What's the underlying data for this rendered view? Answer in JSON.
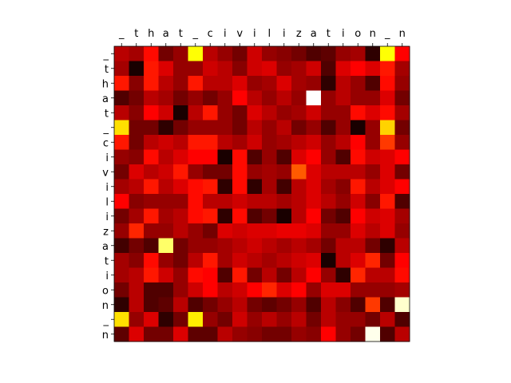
{
  "chart_data": {
    "type": "heatmap",
    "title": "",
    "xlabel": "",
    "ylabel": "",
    "colormap": "hot",
    "x_ticks_position": "top",
    "grid": false,
    "legend": "none",
    "x_tick_labels": [
      "_",
      "t",
      "h",
      "a",
      "t",
      "_",
      "c",
      "i",
      "v",
      "i",
      "l",
      "i",
      "z",
      "a",
      "t",
      "i",
      "o",
      "n",
      "_",
      "n"
    ],
    "y_tick_labels": [
      "_",
      "t",
      "h",
      "a",
      "t",
      "_",
      "c",
      "i",
      "v",
      "i",
      "l",
      "i",
      "z",
      "a",
      "t",
      "i",
      "o",
      "n",
      "_",
      "n"
    ],
    "value_range": [
      0,
      1
    ],
    "values": [
      [
        0.25,
        0.22,
        0.38,
        0.15,
        0.2,
        0.75,
        0.25,
        0.2,
        0.15,
        0.28,
        0.2,
        0.18,
        0.15,
        0.1,
        0.12,
        0.2,
        0.22,
        0.05,
        0.75,
        0.35
      ],
      [
        0.22,
        0.02,
        0.4,
        0.3,
        0.2,
        0.2,
        0.28,
        0.25,
        0.18,
        0.28,
        0.3,
        0.2,
        0.22,
        0.28,
        0.1,
        0.3,
        0.35,
        0.3,
        0.4,
        0.22
      ],
      [
        0.4,
        0.18,
        0.4,
        0.25,
        0.2,
        0.4,
        0.25,
        0.25,
        0.3,
        0.2,
        0.22,
        0.3,
        0.22,
        0.2,
        0.05,
        0.25,
        0.2,
        0.1,
        0.38,
        0.2
      ],
      [
        0.1,
        0.15,
        0.25,
        0.22,
        0.15,
        0.2,
        0.15,
        0.2,
        0.35,
        0.25,
        0.2,
        0.25,
        0.2,
        1.0,
        0.2,
        0.25,
        0.2,
        0.2,
        0.3,
        0.15
      ],
      [
        0.25,
        0.18,
        0.35,
        0.28,
        0.02,
        0.25,
        0.4,
        0.2,
        0.15,
        0.3,
        0.25,
        0.2,
        0.22,
        0.28,
        0.2,
        0.2,
        0.38,
        0.3,
        0.38,
        0.22
      ],
      [
        0.7,
        0.15,
        0.15,
        0.05,
        0.15,
        0.2,
        0.2,
        0.2,
        0.15,
        0.25,
        0.2,
        0.25,
        0.15,
        0.2,
        0.1,
        0.2,
        0.02,
        0.2,
        0.68,
        0.15
      ],
      [
        0.4,
        0.15,
        0.25,
        0.28,
        0.25,
        0.4,
        0.4,
        0.25,
        0.22,
        0.28,
        0.2,
        0.22,
        0.25,
        0.28,
        0.2,
        0.25,
        0.35,
        0.2,
        0.45,
        0.2
      ],
      [
        0.2,
        0.18,
        0.38,
        0.25,
        0.3,
        0.35,
        0.35,
        0.02,
        0.38,
        0.1,
        0.2,
        0.1,
        0.3,
        0.35,
        0.2,
        0.1,
        0.38,
        0.28,
        0.3,
        0.35
      ],
      [
        0.15,
        0.3,
        0.25,
        0.28,
        0.4,
        0.2,
        0.15,
        0.15,
        0.38,
        0.2,
        0.22,
        0.2,
        0.5,
        0.3,
        0.25,
        0.25,
        0.25,
        0.2,
        0.3,
        0.15
      ],
      [
        0.22,
        0.25,
        0.4,
        0.25,
        0.3,
        0.38,
        0.4,
        0.05,
        0.38,
        0.05,
        0.22,
        0.08,
        0.25,
        0.3,
        0.22,
        0.18,
        0.4,
        0.25,
        0.3,
        0.35
      ],
      [
        0.35,
        0.18,
        0.2,
        0.2,
        0.2,
        0.38,
        0.25,
        0.25,
        0.28,
        0.25,
        0.25,
        0.22,
        0.25,
        0.3,
        0.25,
        0.2,
        0.28,
        0.18,
        0.4,
        0.1
      ],
      [
        0.15,
        0.22,
        0.4,
        0.22,
        0.25,
        0.38,
        0.4,
        0.05,
        0.38,
        0.1,
        0.15,
        0.02,
        0.25,
        0.35,
        0.15,
        0.1,
        0.35,
        0.28,
        0.3,
        0.22
      ],
      [
        0.2,
        0.42,
        0.2,
        0.2,
        0.25,
        0.2,
        0.15,
        0.3,
        0.28,
        0.3,
        0.3,
        0.32,
        0.32,
        0.3,
        0.2,
        0.2,
        0.3,
        0.25,
        0.3,
        0.2
      ],
      [
        0.08,
        0.15,
        0.1,
        0.85,
        0.15,
        0.2,
        0.2,
        0.22,
        0.25,
        0.28,
        0.25,
        0.22,
        0.25,
        0.22,
        0.15,
        0.25,
        0.25,
        0.15,
        0.05,
        0.25
      ],
      [
        0.22,
        0.18,
        0.38,
        0.2,
        0.15,
        0.25,
        0.4,
        0.22,
        0.28,
        0.25,
        0.22,
        0.25,
        0.28,
        0.3,
        0.02,
        0.25,
        0.3,
        0.42,
        0.15,
        0.35
      ],
      [
        0.22,
        0.25,
        0.4,
        0.28,
        0.2,
        0.38,
        0.35,
        0.1,
        0.4,
        0.15,
        0.25,
        0.15,
        0.25,
        0.35,
        0.2,
        0.05,
        0.42,
        0.25,
        0.25,
        0.38
      ],
      [
        0.15,
        0.25,
        0.1,
        0.1,
        0.2,
        0.28,
        0.35,
        0.25,
        0.28,
        0.35,
        0.42,
        0.3,
        0.35,
        0.2,
        0.3,
        0.3,
        0.2,
        0.2,
        0.2,
        0.22
      ],
      [
        0.05,
        0.25,
        0.1,
        0.12,
        0.25,
        0.1,
        0.15,
        0.2,
        0.25,
        0.15,
        0.12,
        0.15,
        0.2,
        0.1,
        0.25,
        0.18,
        0.1,
        0.45,
        0.1,
        0.95
      ],
      [
        0.7,
        0.2,
        0.3,
        0.05,
        0.15,
        0.72,
        0.2,
        0.15,
        0.28,
        0.2,
        0.25,
        0.2,
        0.25,
        0.15,
        0.25,
        0.2,
        0.2,
        0.15,
        0.25,
        0.1
      ],
      [
        0.12,
        0.3,
        0.15,
        0.15,
        0.3,
        0.12,
        0.12,
        0.25,
        0.2,
        0.18,
        0.15,
        0.15,
        0.2,
        0.18,
        0.35,
        0.2,
        0.15,
        0.98,
        0.1,
        0.25
      ]
    ]
  }
}
